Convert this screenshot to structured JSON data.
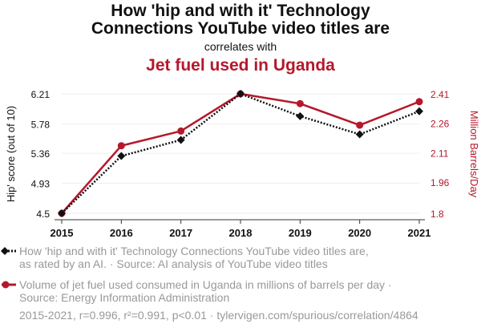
{
  "title_line1": "How 'hip and with it' Technology",
  "title_line2": "Connections YouTube video titles are",
  "subtitle": "correlates with",
  "title_line3": "Jet fuel used in Uganda",
  "colors": {
    "series1": "#111111",
    "series2": "#b5182b",
    "legend_text": "#999999"
  },
  "legend": {
    "item1_line1": "How 'hip and with it' Technology Connections YouTube video titles are,",
    "item1_line2": "as rated by an AI. · Source: AI analysis of YouTube video titles",
    "item2_line1": "Volume of jet fuel used consumed in Uganda in millions of barrels per day ·",
    "item2_line2": "Source: Energy Information Administration"
  },
  "footer": "2015-2021, r=0.996, r²=0.991, p<0.01 · tylervigen.com/spurious/correlation/4864",
  "chart_data": {
    "type": "line",
    "x": [
      "2015",
      "2016",
      "2017",
      "2018",
      "2019",
      "2020",
      "2021"
    ],
    "series": [
      {
        "name": "How 'hip and with it' Technology Connections YouTube video titles are, as rated by an AI.",
        "axis": "left",
        "style": "dotted",
        "marker": "diamond",
        "values": [
          4.5,
          5.32,
          5.55,
          6.21,
          5.89,
          5.63,
          5.96
        ]
      },
      {
        "name": "Volume of jet fuel used consumed in Uganda in millions of barrels per day",
        "axis": "right",
        "style": "solid",
        "marker": "circle",
        "values": [
          1.8,
          2.145,
          2.22,
          2.41,
          2.36,
          2.25,
          2.37
        ]
      }
    ],
    "y_left": {
      "label": "Hip' score (out of 10)",
      "ticks": [
        "4.5",
        "4.93",
        "5.36",
        "5.78",
        "6.21"
      ],
      "tick_values": [
        4.5,
        4.93,
        5.36,
        5.78,
        6.21
      ],
      "range": [
        4.5,
        6.21
      ]
    },
    "y_right": {
      "label": "Million Barrels/Day",
      "ticks": [
        "1.8",
        "1.96",
        "2.11",
        "2.26",
        "2.41"
      ],
      "tick_values": [
        1.8,
        1.96,
        2.11,
        2.26,
        2.41
      ],
      "range": [
        1.8,
        2.41
      ]
    },
    "grid": true
  }
}
